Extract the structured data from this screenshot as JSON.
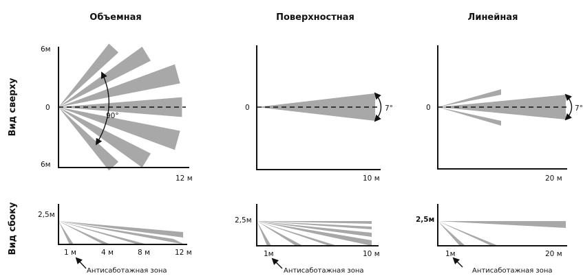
{
  "columns": [
    {
      "title": "Объемная"
    },
    {
      "title": "Поверхностная"
    },
    {
      "title": "Линейная"
    }
  ],
  "rows": {
    "top_label": "Вид сверху",
    "side_label": "Вид сбоку"
  },
  "top": {
    "col1": {
      "y_top": "6м",
      "y_zero": "0",
      "y_bottom": "6м",
      "angle": "90°",
      "x_max": "12 м"
    },
    "col2": {
      "y_zero": "0",
      "angle": "7°",
      "x_max": "10 м"
    },
    "col3": {
      "y_zero": "0",
      "angle": "7°",
      "x_max": "20 м"
    }
  },
  "side": {
    "col1": {
      "height": "2,5м",
      "ticks": [
        "1 м",
        "4 м",
        "8 м",
        "12 м"
      ]
    },
    "col2": {
      "height": "2,5м",
      "ticks": [
        "1м",
        "10 м"
      ]
    },
    "col3": {
      "height": "2,5м",
      "ticks": [
        "1м",
        "20 м"
      ]
    }
  },
  "antisabotage_label": "Антисаботажная зона",
  "colors": {
    "beam": "#a8a8a8",
    "axis": "#111111"
  }
}
